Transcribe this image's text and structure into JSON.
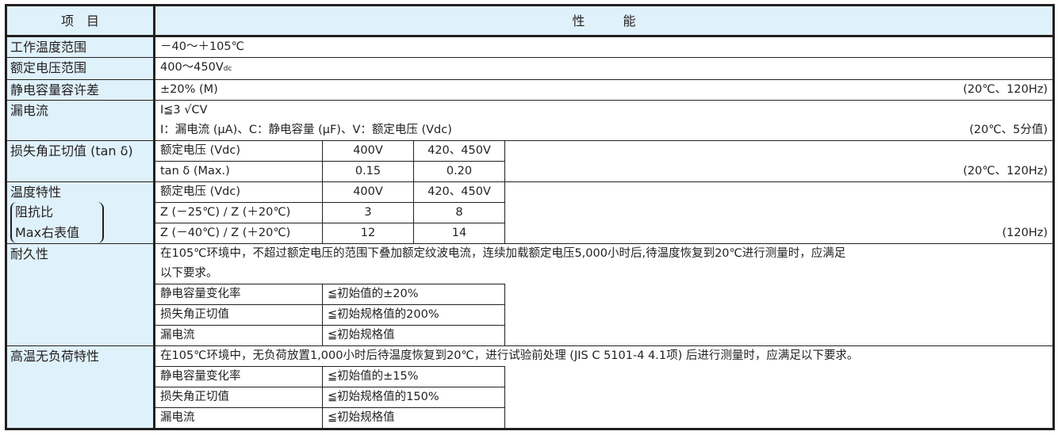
{
  "header": {
    "item": "项　目",
    "performance": "性　　　能"
  },
  "rows": {
    "temp_range": {
      "label": "工作温度范围",
      "value": "－40～＋105℃"
    },
    "voltage_range": {
      "label": "额定电压范围",
      "value": "400～450V",
      "unit": "dc"
    },
    "cap_tolerance": {
      "label": "静电容量容许差",
      "value": "±20% (M)",
      "note": "(20℃、120Hz)"
    },
    "leakage": {
      "label": "漏电流",
      "formula": "I≦3 √CV",
      "legend": "I：漏电流 (μA)、C：静电容量 (μF)、V：额定电压 (Vdc)",
      "note": "(20℃、5分值)"
    },
    "tan_delta": {
      "label": "损失角正切值 (tan δ)",
      "head": [
        "额定电压 (Vdc)",
        "400V",
        "420、450V"
      ],
      "row": [
        "tan δ (Max.)",
        "0.15",
        "0.20"
      ],
      "note": "(20℃、120Hz)"
    },
    "temp_char": {
      "label_lines": [
        "温度特性",
        "阻抗比",
        "Max右表值"
      ],
      "head": [
        "额定电压 (Vdc)",
        "400V",
        "420、450V"
      ],
      "rows": [
        [
          "Z (－25℃) / Z (＋20℃)",
          "3",
          "8"
        ],
        [
          "Z (－40℃) / Z (＋20℃)",
          "12",
          "14"
        ]
      ],
      "note": "(120Hz)"
    },
    "endurance": {
      "label": "耐久性",
      "text_lines": [
        "在105℃环境中，不超过额定电压的范围下叠加额定纹波电流，连续加载额定电压5,000小时后,待温度恢复到20℃进行测量时，应满足",
        "以下要求。"
      ],
      "items": [
        [
          "静电容量变化率",
          "≦初始值的±20%"
        ],
        [
          "损失角正切值",
          "≦初始规格值的200%"
        ],
        [
          "漏电流",
          "≦初始规格值"
        ]
      ]
    },
    "shelf": {
      "label": "高温无负荷特性",
      "text": "在105℃环境中，无负荷放置1,000小时后待温度恢复到20℃，进行试验前处理 (JIS C 5101-4 4.1项) 后进行测量时，应满足以下要求。",
      "items": [
        [
          "静电容量变化率",
          "≦初始值的±15%"
        ],
        [
          "损失角正切值",
          "≦初始规格值的150%"
        ],
        [
          "漏电流",
          "≦初始规格值"
        ]
      ]
    }
  }
}
